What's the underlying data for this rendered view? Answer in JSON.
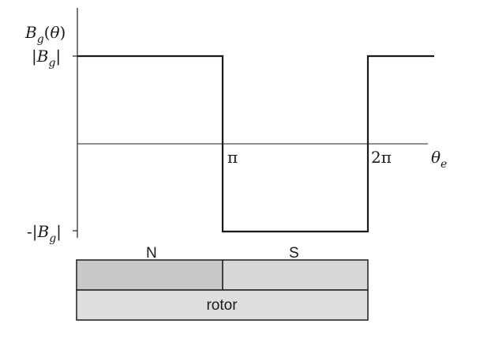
{
  "labels": {
    "y_axis": "Bg(θ)",
    "y_top": "|Bg|",
    "y_bottom": "-|Bg|",
    "x_pi": "π",
    "x_2pi": "2π",
    "x_axis": "θe",
    "pole_n": "N",
    "pole_s": "S",
    "rotor": "rotor"
  },
  "colors": {
    "line": "#1a1a1a",
    "axis": "#222222",
    "pole_n": "#c8c8c8",
    "pole_s": "#d7d7d7",
    "rotor": "#dedede",
    "outline": "#2a2a2a"
  }
}
